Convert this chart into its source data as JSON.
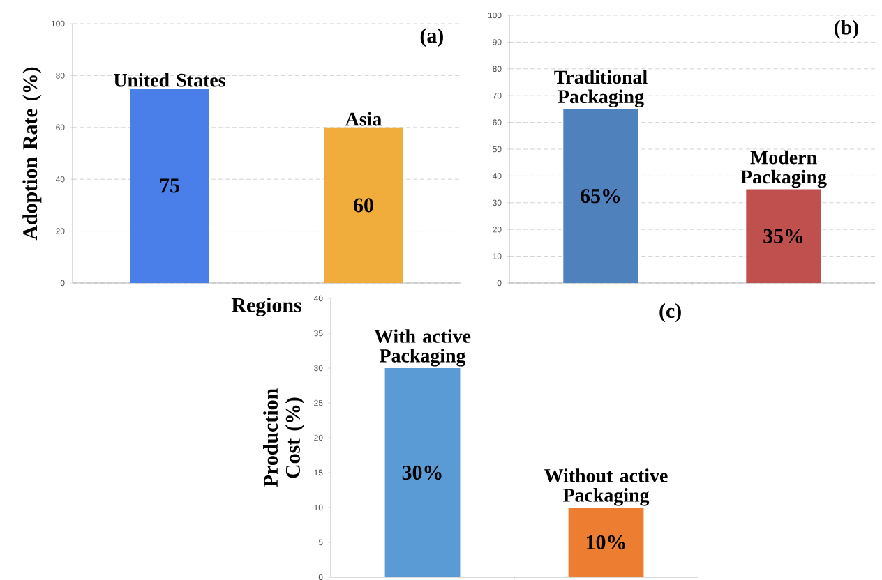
{
  "chart_data": [
    {
      "type": "bar",
      "title": "(a)",
      "xlabel": "Regions",
      "ylabel": "Adoption Rate (%)",
      "categories": [
        "United States",
        "Asia"
      ],
      "values": [
        75,
        60
      ],
      "colors": [
        "#4a7fea",
        "#f0ad3c"
      ],
      "ylim": [
        0,
        100
      ],
      "yticks": [
        0,
        20,
        40,
        60,
        80,
        100
      ],
      "grid": "y",
      "data_labels": true,
      "tick_labels": "y"
    },
    {
      "type": "bar",
      "title": "(b)",
      "categories": [
        "Traditional Packaging",
        "Modern Packaging"
      ],
      "values": [
        65,
        35
      ],
      "value_labels": [
        "65%",
        "35%"
      ],
      "colors": [
        "#4f81bd",
        "#c0504d"
      ],
      "ylim": [
        0,
        100
      ],
      "yticks": [
        0,
        10,
        20,
        30,
        40,
        50,
        60,
        70,
        80,
        90,
        100
      ],
      "grid": "y",
      "tick_labels": "y"
    },
    {
      "type": "bar",
      "title": "(c)",
      "ylabel": "Production Cost (%)",
      "categories": [
        "With active Packaging",
        "Without active Packaging"
      ],
      "values": [
        30,
        10
      ],
      "value_labels": [
        "30%",
        "10%"
      ],
      "colors": [
        "#5b9bd5",
        "#ed7d31"
      ],
      "ylim": [
        0,
        40
      ],
      "yticks": [
        0,
        5,
        10,
        15,
        20,
        25,
        30,
        35,
        40
      ],
      "tick_labels": "y"
    }
  ]
}
